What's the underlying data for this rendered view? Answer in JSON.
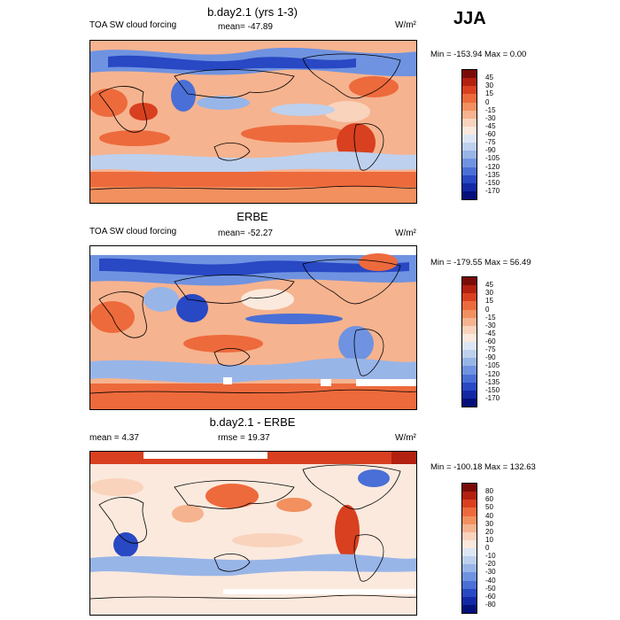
{
  "season": "JJA",
  "panels": [
    {
      "title": "b.day2.1 (yrs 1-3)",
      "left": "TOA SW cloud forcing",
      "center": "mean= -47.89",
      "units": "W/m²",
      "minmax": "Min = -153.94 Max =   0.00",
      "colorbar": {
        "labels": [
          "45",
          "30",
          "15",
          "0",
          "-15",
          "-30",
          "-45",
          "-60",
          "-75",
          "-90",
          "-105",
          "-120",
          "-135",
          "-150",
          "-170"
        ],
        "colors": [
          "#7a0b07",
          "#b2200f",
          "#d8401f",
          "#ed6a3c",
          "#f2905f",
          "#f6b38f",
          "#f9d3bc",
          "#fbe9dd",
          "#dde6f4",
          "#bdd0ee",
          "#98b5e8",
          "#6f93e0",
          "#4a6fd6",
          "#2848c4",
          "#1228a4",
          "#050f7a"
        ]
      }
    },
    {
      "title": "ERBE",
      "left": "TOA SW cloud forcing",
      "center": "mean= -52.27",
      "units": "W/m²",
      "minmax": "Min = -179.55 Max =  56.49",
      "colorbar": {
        "labels": [
          "45",
          "30",
          "15",
          "0",
          "-15",
          "-30",
          "-45",
          "-60",
          "-75",
          "-90",
          "-105",
          "-120",
          "-135",
          "-150",
          "-170"
        ],
        "colors": [
          "#7a0b07",
          "#b2200f",
          "#d8401f",
          "#ed6a3c",
          "#f2905f",
          "#f6b38f",
          "#f9d3bc",
          "#fbe9dd",
          "#dde6f4",
          "#bdd0ee",
          "#98b5e8",
          "#6f93e0",
          "#4a6fd6",
          "#2848c4",
          "#1228a4",
          "#050f7a"
        ]
      }
    },
    {
      "title": "b.day2.1 - ERBE",
      "left": "mean =   4.37",
      "center": "rmse =  19.37",
      "units": "W/m²",
      "minmax": "Min = -100.18 Max = 132.63",
      "colorbar": {
        "labels": [
          "80",
          "60",
          "50",
          "40",
          "30",
          "20",
          "10",
          "0",
          "-10",
          "-20",
          "-30",
          "-40",
          "-50",
          "-60",
          "-80"
        ],
        "colors": [
          "#7a0b07",
          "#b2200f",
          "#d8401f",
          "#ed6a3c",
          "#f2905f",
          "#f6b38f",
          "#f9d3bc",
          "#fbe9dd",
          "#dde6f4",
          "#bdd0ee",
          "#98b5e8",
          "#6f93e0",
          "#4a6fd6",
          "#2848c4",
          "#1228a4",
          "#050f7a"
        ]
      }
    }
  ]
}
